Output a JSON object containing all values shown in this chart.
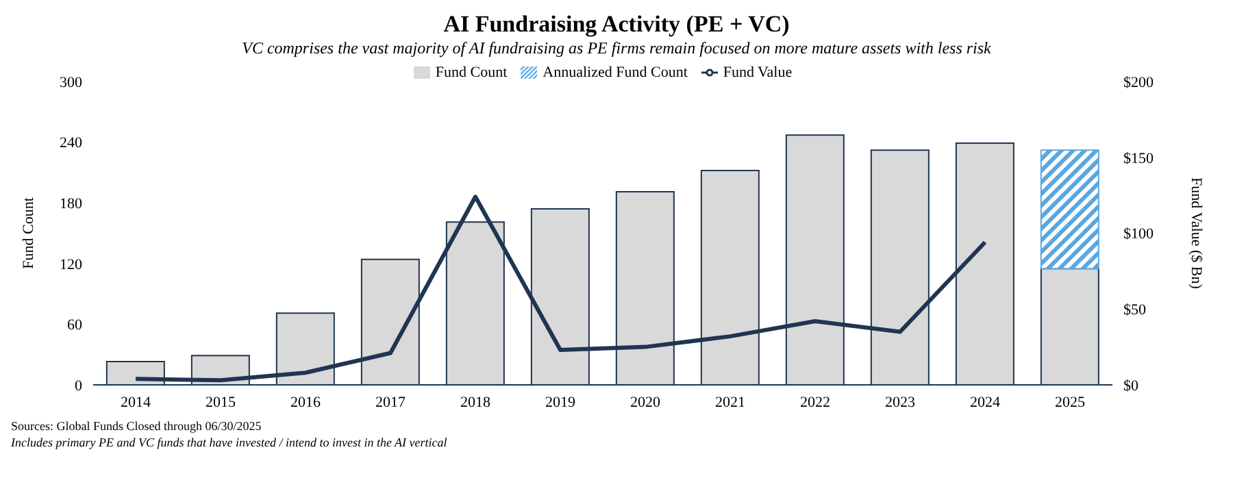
{
  "chart_data": {
    "type": "bar",
    "title": "AI Fundraising Activity (PE + VC)",
    "subtitle": "VC comprises the vast majority of AI fundraising as PE firms remain focused on more mature assets with less risk",
    "ylabel": "Fund Count",
    "y2label": "Fund Value ($ Bn)",
    "categories": [
      "2014",
      "2015",
      "2016",
      "2017",
      "2018",
      "2019",
      "2020",
      "2021",
      "2022",
      "2023",
      "2024",
      "2025"
    ],
    "series": [
      {
        "name": "Fund Count",
        "color": "#d9d9d9",
        "values": [
          23,
          29,
          71,
          124,
          161,
          174,
          191,
          212,
          247,
          232,
          239,
          115
        ]
      },
      {
        "name": "Annualized Fund Count",
        "color": "#5aa7e0",
        "values": [
          null,
          null,
          null,
          null,
          null,
          null,
          null,
          null,
          null,
          null,
          null,
          117
        ]
      },
      {
        "name": "Fund Value",
        "type": "line",
        "axis": "y2",
        "color": "#1f3552",
        "values": [
          4,
          3,
          8,
          21,
          124,
          23,
          25,
          32,
          42,
          35,
          94,
          null
        ]
      }
    ],
    "stacked": true,
    "ylim": [
      0,
      300
    ],
    "yticks": [
      0,
      60,
      120,
      180,
      240,
      300
    ],
    "y2lim": [
      0,
      200
    ],
    "y2ticks": [
      {
        "value": 0,
        "label": "$0"
      },
      {
        "value": 50,
        "label": "$50"
      },
      {
        "value": 100,
        "label": "$100"
      },
      {
        "value": 150,
        "label": "$150"
      },
      {
        "value": 200,
        "label": "$200"
      }
    ],
    "legend": "top",
    "grid": false,
    "marker": "none",
    "annotations": [
      "Sources: Global Funds Closed through 06/30/2025",
      "Includes primary PE and VC funds that have invested / intend to invest in the AI vertical"
    ]
  }
}
